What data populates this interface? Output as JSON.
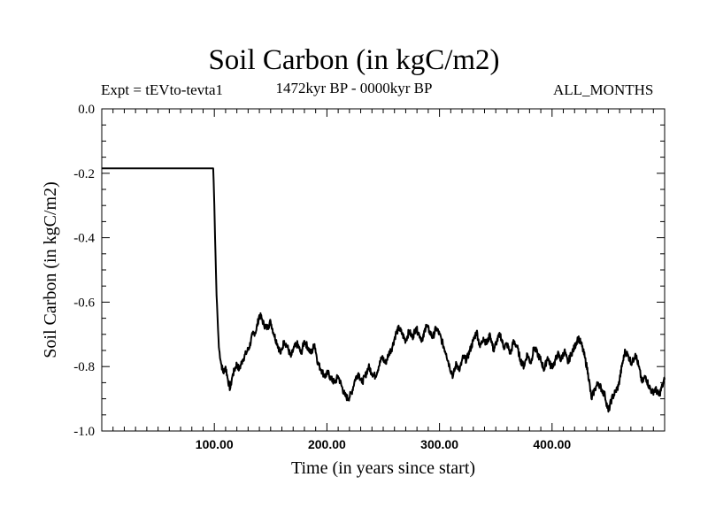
{
  "chart_data": {
    "type": "line",
    "title": "Soil Carbon (in kgC/m2)",
    "subtitle": "1472kyr BP - 0000kyr BP",
    "left_label": "Expt = tEVto-tevta1",
    "right_label": "ALL_MONTHS",
    "xlabel": "Time (in years since start)",
    "ylabel": "Soil Carbon (in kgC/m2)",
    "xlim": [
      0,
      500
    ],
    "ylim": [
      -1.0,
      0.0
    ],
    "xticks": [
      100,
      200,
      300,
      400
    ],
    "xtick_labels": [
      "100.00",
      "200.00",
      "300.00",
      "400.00"
    ],
    "yticks": [
      0.0,
      -0.2,
      -0.4,
      -0.6,
      -0.8,
      -1.0
    ],
    "ytick_labels": [
      "0.0",
      "-0.2",
      "-0.4",
      "-0.6",
      "-0.8",
      "-1.0"
    ],
    "grid": false,
    "series": [
      {
        "name": "Soil Carbon",
        "x": [
          0,
          99,
          100,
          101,
          102,
          103,
          104,
          106,
          108,
          110,
          112,
          114,
          116,
          118,
          120,
          122,
          125,
          128,
          131,
          134,
          137,
          140,
          142,
          144,
          147,
          150,
          153,
          156,
          159,
          162,
          165,
          168,
          171,
          174,
          177,
          180,
          183,
          186,
          189,
          192,
          195,
          198,
          201,
          204,
          207,
          210,
          213,
          216,
          219,
          222,
          225,
          228,
          231,
          234,
          237,
          240,
          243,
          246,
          249,
          252,
          255,
          258,
          261,
          264,
          267,
          270,
          273,
          276,
          279,
          282,
          285,
          288,
          291,
          294,
          297,
          300,
          303,
          306,
          309,
          312,
          315,
          318,
          321,
          324,
          327,
          330,
          333,
          336,
          339,
          342,
          345,
          348,
          351,
          354,
          357,
          360,
          363,
          366,
          369,
          372,
          375,
          378,
          381,
          384,
          387,
          390,
          393,
          396,
          399,
          402,
          405,
          408,
          411,
          414,
          417,
          420,
          423,
          426,
          429,
          432,
          435,
          438,
          441,
          444,
          447,
          450,
          453,
          456,
          459,
          462,
          465,
          468,
          471,
          474,
          477,
          480,
          483,
          486,
          489,
          492,
          495,
          498,
          500
        ],
        "values": [
          -0.185,
          -0.185,
          -0.3,
          -0.45,
          -0.58,
          -0.66,
          -0.74,
          -0.79,
          -0.82,
          -0.8,
          -0.84,
          -0.87,
          -0.83,
          -0.81,
          -0.79,
          -0.81,
          -0.78,
          -0.76,
          -0.74,
          -0.7,
          -0.69,
          -0.64,
          -0.65,
          -0.67,
          -0.68,
          -0.66,
          -0.7,
          -0.73,
          -0.76,
          -0.72,
          -0.74,
          -0.77,
          -0.74,
          -0.73,
          -0.76,
          -0.72,
          -0.74,
          -0.76,
          -0.73,
          -0.79,
          -0.81,
          -0.83,
          -0.82,
          -0.84,
          -0.85,
          -0.83,
          -0.86,
          -0.89,
          -0.9,
          -0.88,
          -0.84,
          -0.82,
          -0.85,
          -0.83,
          -0.8,
          -0.82,
          -0.83,
          -0.8,
          -0.77,
          -0.79,
          -0.76,
          -0.74,
          -0.7,
          -0.68,
          -0.7,
          -0.72,
          -0.69,
          -0.71,
          -0.68,
          -0.7,
          -0.72,
          -0.67,
          -0.69,
          -0.71,
          -0.68,
          -0.7,
          -0.73,
          -0.76,
          -0.8,
          -0.83,
          -0.79,
          -0.81,
          -0.77,
          -0.78,
          -0.75,
          -0.72,
          -0.69,
          -0.74,
          -0.71,
          -0.73,
          -0.7,
          -0.75,
          -0.72,
          -0.7,
          -0.74,
          -0.73,
          -0.76,
          -0.72,
          -0.74,
          -0.78,
          -0.8,
          -0.76,
          -0.79,
          -0.74,
          -0.76,
          -0.78,
          -0.81,
          -0.77,
          -0.8,
          -0.79,
          -0.76,
          -0.78,
          -0.75,
          -0.79,
          -0.76,
          -0.74,
          -0.71,
          -0.73,
          -0.77,
          -0.82,
          -0.9,
          -0.87,
          -0.85,
          -0.87,
          -0.89,
          -0.94,
          -0.9,
          -0.88,
          -0.86,
          -0.8,
          -0.75,
          -0.77,
          -0.79,
          -0.76,
          -0.8,
          -0.85,
          -0.83,
          -0.86,
          -0.88,
          -0.87,
          -0.89,
          -0.86,
          -0.84
        ]
      }
    ]
  }
}
